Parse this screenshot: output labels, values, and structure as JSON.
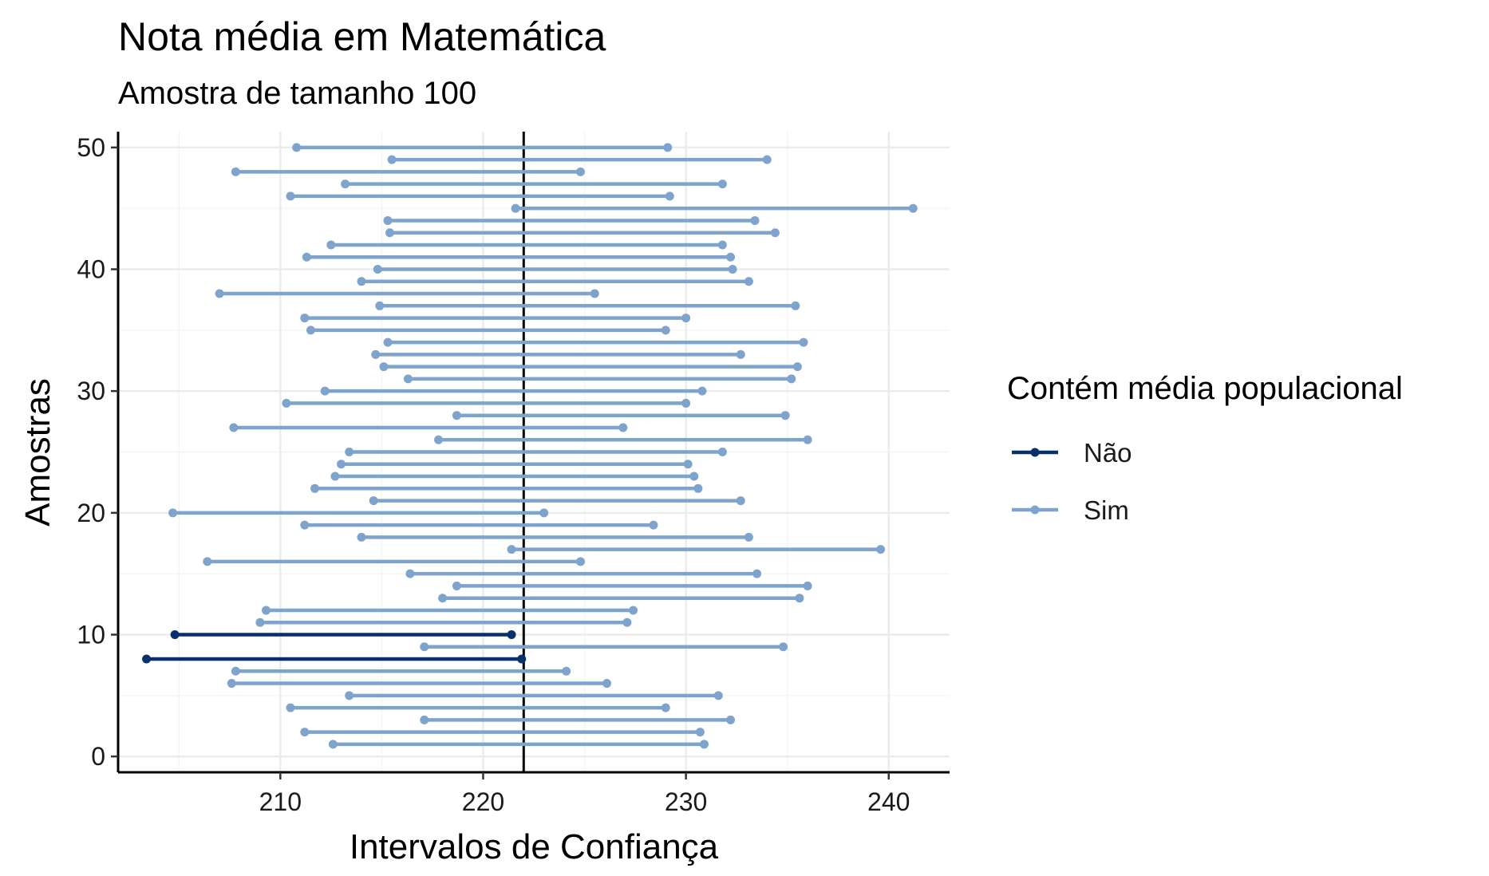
{
  "chart_data": {
    "type": "interval",
    "title": "Nota média em Matemática",
    "subtitle": "Amostra de tamanho 100",
    "xlabel": "Intervalos de Confiança",
    "ylabel": "Amostras",
    "xlim": [
      202.0,
      243.0
    ],
    "ylim": [
      -1.3,
      51.3
    ],
    "x_ticks": [
      210,
      220,
      230,
      240
    ],
    "y_ticks": [
      0,
      10,
      20,
      30,
      40,
      50
    ],
    "reference_line": 222,
    "grid": true,
    "legend_position": "right",
    "legend": {
      "title": "Contém média populacional",
      "entries": [
        {
          "label": "Não",
          "color": "#08306b"
        },
        {
          "label": "Sim",
          "color": "#7ea3cc"
        }
      ]
    },
    "intervals": [
      {
        "sample": 1,
        "lower": 212.6,
        "upper": 230.9,
        "contains": "Sim"
      },
      {
        "sample": 2,
        "lower": 211.2,
        "upper": 230.7,
        "contains": "Sim"
      },
      {
        "sample": 3,
        "lower": 217.1,
        "upper": 232.2,
        "contains": "Sim"
      },
      {
        "sample": 4,
        "lower": 210.5,
        "upper": 229.0,
        "contains": "Sim"
      },
      {
        "sample": 5,
        "lower": 213.4,
        "upper": 231.6,
        "contains": "Sim"
      },
      {
        "sample": 6,
        "lower": 207.6,
        "upper": 226.1,
        "contains": "Sim"
      },
      {
        "sample": 7,
        "lower": 207.8,
        "upper": 224.1,
        "contains": "Sim"
      },
      {
        "sample": 8,
        "lower": 203.4,
        "upper": 221.9,
        "contains": "Não"
      },
      {
        "sample": 9,
        "lower": 217.1,
        "upper": 234.8,
        "contains": "Sim"
      },
      {
        "sample": 10,
        "lower": 204.8,
        "upper": 221.4,
        "contains": "Não"
      },
      {
        "sample": 11,
        "lower": 209.0,
        "upper": 227.1,
        "contains": "Sim"
      },
      {
        "sample": 12,
        "lower": 209.3,
        "upper": 227.4,
        "contains": "Sim"
      },
      {
        "sample": 13,
        "lower": 218.0,
        "upper": 235.6,
        "contains": "Sim"
      },
      {
        "sample": 14,
        "lower": 218.7,
        "upper": 236.0,
        "contains": "Sim"
      },
      {
        "sample": 15,
        "lower": 216.4,
        "upper": 233.5,
        "contains": "Sim"
      },
      {
        "sample": 16,
        "lower": 206.4,
        "upper": 224.8,
        "contains": "Sim"
      },
      {
        "sample": 17,
        "lower": 221.4,
        "upper": 239.6,
        "contains": "Sim"
      },
      {
        "sample": 18,
        "lower": 214.0,
        "upper": 233.1,
        "contains": "Sim"
      },
      {
        "sample": 19,
        "lower": 211.2,
        "upper": 228.4,
        "contains": "Sim"
      },
      {
        "sample": 20,
        "lower": 204.7,
        "upper": 223.0,
        "contains": "Sim"
      },
      {
        "sample": 21,
        "lower": 214.6,
        "upper": 232.7,
        "contains": "Sim"
      },
      {
        "sample": 22,
        "lower": 211.7,
        "upper": 230.6,
        "contains": "Sim"
      },
      {
        "sample": 23,
        "lower": 212.7,
        "upper": 230.4,
        "contains": "Sim"
      },
      {
        "sample": 24,
        "lower": 213.0,
        "upper": 230.1,
        "contains": "Sim"
      },
      {
        "sample": 25,
        "lower": 213.4,
        "upper": 231.8,
        "contains": "Sim"
      },
      {
        "sample": 26,
        "lower": 217.8,
        "upper": 236.0,
        "contains": "Sim"
      },
      {
        "sample": 27,
        "lower": 207.7,
        "upper": 226.9,
        "contains": "Sim"
      },
      {
        "sample": 28,
        "lower": 218.7,
        "upper": 234.9,
        "contains": "Sim"
      },
      {
        "sample": 29,
        "lower": 210.3,
        "upper": 230.0,
        "contains": "Sim"
      },
      {
        "sample": 30,
        "lower": 212.2,
        "upper": 230.8,
        "contains": "Sim"
      },
      {
        "sample": 31,
        "lower": 216.3,
        "upper": 235.2,
        "contains": "Sim"
      },
      {
        "sample": 32,
        "lower": 215.1,
        "upper": 235.5,
        "contains": "Sim"
      },
      {
        "sample": 33,
        "lower": 214.7,
        "upper": 232.7,
        "contains": "Sim"
      },
      {
        "sample": 34,
        "lower": 215.3,
        "upper": 235.8,
        "contains": "Sim"
      },
      {
        "sample": 35,
        "lower": 211.5,
        "upper": 229.0,
        "contains": "Sim"
      },
      {
        "sample": 36,
        "lower": 211.2,
        "upper": 230.0,
        "contains": "Sim"
      },
      {
        "sample": 37,
        "lower": 214.9,
        "upper": 235.4,
        "contains": "Sim"
      },
      {
        "sample": 38,
        "lower": 207.0,
        "upper": 225.5,
        "contains": "Sim"
      },
      {
        "sample": 39,
        "lower": 214.0,
        "upper": 233.1,
        "contains": "Sim"
      },
      {
        "sample": 40,
        "lower": 214.8,
        "upper": 232.3,
        "contains": "Sim"
      },
      {
        "sample": 41,
        "lower": 211.3,
        "upper": 232.2,
        "contains": "Sim"
      },
      {
        "sample": 42,
        "lower": 212.5,
        "upper": 231.8,
        "contains": "Sim"
      },
      {
        "sample": 43,
        "lower": 215.4,
        "upper": 234.4,
        "contains": "Sim"
      },
      {
        "sample": 44,
        "lower": 215.3,
        "upper": 233.4,
        "contains": "Sim"
      },
      {
        "sample": 45,
        "lower": 221.6,
        "upper": 241.2,
        "contains": "Sim"
      },
      {
        "sample": 46,
        "lower": 210.5,
        "upper": 229.2,
        "contains": "Sim"
      },
      {
        "sample": 47,
        "lower": 213.2,
        "upper": 231.8,
        "contains": "Sim"
      },
      {
        "sample": 48,
        "lower": 207.8,
        "upper": 224.8,
        "contains": "Sim"
      },
      {
        "sample": 49,
        "lower": 215.5,
        "upper": 234.0,
        "contains": "Sim"
      },
      {
        "sample": 50,
        "lower": 210.8,
        "upper": 229.1,
        "contains": "Sim"
      }
    ]
  }
}
